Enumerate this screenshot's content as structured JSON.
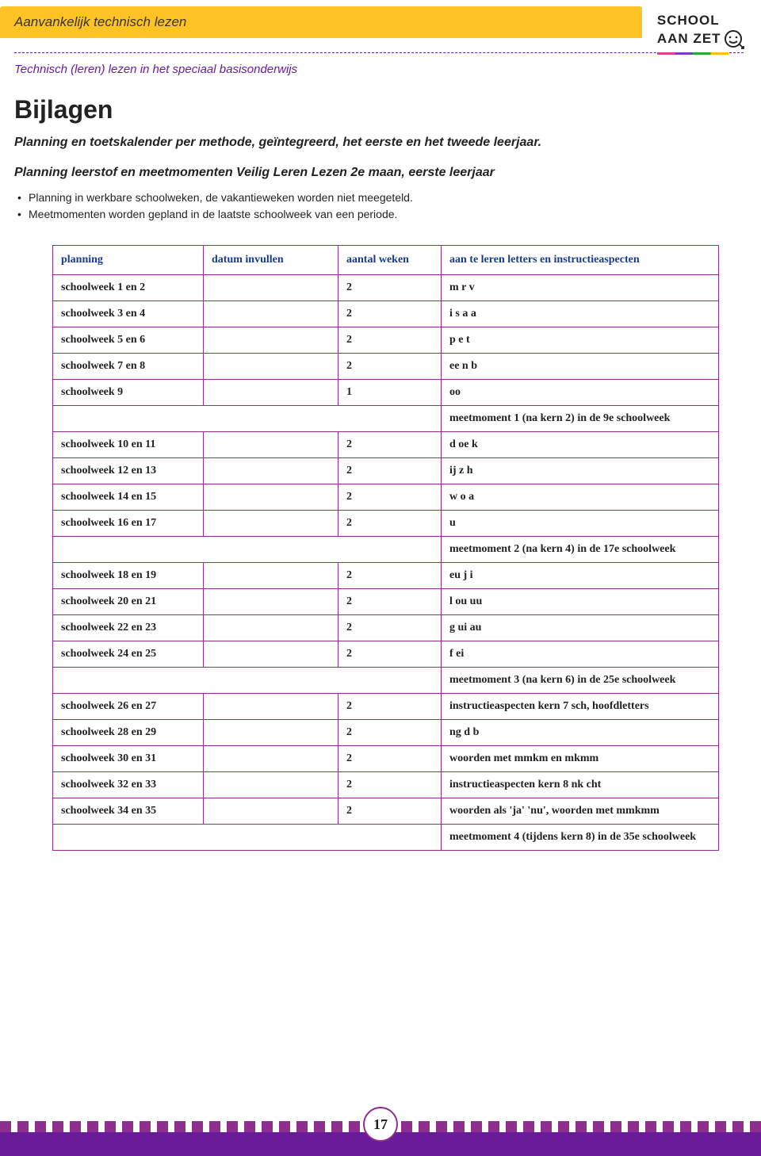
{
  "header": {
    "banner_text": "Aanvankelijk technisch lezen",
    "logo_line1": "SCHOOL",
    "logo_line2": "AAN ZET"
  },
  "subhead": "Technisch (leren) lezen in het speciaal basisonderwijs",
  "title": "Bijlagen",
  "lead": "Planning en toetskalender per methode, geïntegreerd, het eerste en het tweede leerjaar.",
  "section_title": "Planning leerstof en meetmomenten Veilig Leren Lezen 2e maan, eerste leerjaar",
  "bullets": [
    "Planning in werkbare schoolweken, de vakantieweken worden niet meegeteld.",
    "Meetmomenten worden gepland in de laatste schoolweek van een periode."
  ],
  "table": {
    "headers": {
      "c1": "planning",
      "c2": "datum invullen",
      "c3": "aantal weken",
      "c4": "aan te leren letters en instructieaspecten"
    },
    "rows": [
      {
        "c1": "schoolweek 1 en 2",
        "c2": "",
        "c3": "2",
        "c4": "m  r  v"
      },
      {
        "c1": "schoolweek 3 en 4",
        "c2": "",
        "c3": "2",
        "c4": "i  s  a  a"
      },
      {
        "c1": "schoolweek 5 en 6",
        "c2": "",
        "c3": "2",
        "c4": "p  e  t"
      },
      {
        "c1": "schoolweek 7 en 8",
        "c2": "",
        "c3": "2",
        "c4": "ee  n  b"
      },
      {
        "c1": "schoolweek 9",
        "c2": "",
        "c3": "1",
        "c4": "oo"
      },
      {
        "merged": "meetmoment 1 (na kern 2) in de 9e schoolweek"
      },
      {
        "c1": "schoolweek 10 en 11",
        "c2": "",
        "c3": "2",
        "c4": "d  oe  k"
      },
      {
        "c1": "schoolweek 12 en 13",
        "c2": "",
        "c3": "2",
        "c4": "ij  z  h"
      },
      {
        "c1": "schoolweek 14 en 15",
        "c2": "",
        "c3": "2",
        "c4": "w  o  a"
      },
      {
        "c1": "schoolweek 16 en 17",
        "c2": "",
        "c3": "2",
        "c4": "u"
      },
      {
        "merged": "meetmoment 2 (na kern 4) in de 17e schoolweek"
      },
      {
        "c1": "schoolweek 18 en 19",
        "c2": "",
        "c3": "2",
        "c4": "eu  j  i"
      },
      {
        "c1": "schoolweek 20 en 21",
        "c2": "",
        "c3": "2",
        "c4": "l  ou  uu"
      },
      {
        "c1": "schoolweek 22 en 23",
        "c2": "",
        "c3": "2",
        "c4": "g  ui  au"
      },
      {
        "c1": "schoolweek 24 en 25",
        "c2": "",
        "c3": "2",
        "c4": "f  ei"
      },
      {
        "merged": "meetmoment 3 (na kern 6) in de 25e schoolweek"
      },
      {
        "c1": "schoolweek 26 en 27",
        "c2": "",
        "c3": "2",
        "c4": "instructieaspecten kern 7 sch, hoofdletters"
      },
      {
        "c1": "schoolweek 28 en 29",
        "c2": "",
        "c3": "2",
        "c4": "ng  d  b"
      },
      {
        "c1": "schoolweek 30 en 31",
        "c2": "",
        "c3": "2",
        "c4": "woorden met mmkm en mkmm"
      },
      {
        "c1": "schoolweek 32 en 33",
        "c2": "",
        "c3": "2",
        "c4": "instructieaspecten kern 8 nk  cht"
      },
      {
        "c1": "schoolweek 34 en 35",
        "c2": "",
        "c3": "2",
        "c4": "woorden als 'ja' 'nu', woorden met mmkmm"
      },
      {
        "merged": "meetmoment 4 (tijdens kern 8) in de 35e schoolweek"
      }
    ]
  },
  "page_number": "17",
  "colors": {
    "banner_bg": "#ffc423",
    "purple": "#6a1b9a",
    "table_border": "#8e2e8e",
    "header_text": "#1a3a8a"
  }
}
